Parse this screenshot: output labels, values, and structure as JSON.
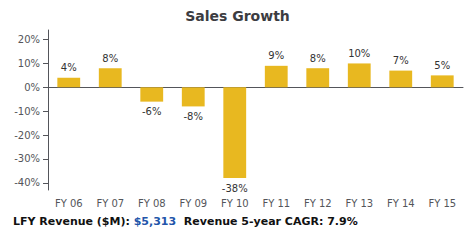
{
  "chart_data": {
    "type": "bar",
    "title": "Sales Growth",
    "categories": [
      "FY 06",
      "FY 07",
      "FY 08",
      "FY 09",
      "FY 10",
      "FY 11",
      "FY 12",
      "FY 13",
      "FY 14",
      "FY 15"
    ],
    "values": [
      4,
      8,
      -6,
      -8,
      -38,
      9,
      8,
      10,
      7,
      5
    ],
    "value_labels": [
      "4%",
      "8%",
      "-6%",
      "-8%",
      "-38%",
      "9%",
      "8%",
      "10%",
      "7%",
      "5%"
    ],
    "data_labels": true,
    "color": "#E8B820",
    "ylim": [
      -43,
      24
    ],
    "yticks": [
      {
        "value": -40,
        "label": "-40%"
      },
      {
        "value": -30,
        "label": "-30%"
      },
      {
        "value": -20,
        "label": "-20%"
      },
      {
        "value": -10,
        "label": "-10%"
      },
      {
        "value": 0,
        "label": "0%"
      },
      {
        "value": 10,
        "label": "10%"
      },
      {
        "value": 20,
        "label": "20%"
      }
    ],
    "grid": false,
    "annotations": [
      {
        "text": "LFY Revenue ($M): "
      },
      {
        "text": "$5,313",
        "color": "#2255AA"
      },
      {
        "text": "  Revenue 5-year CAGR: "
      },
      {
        "text": "7.9%"
      }
    ]
  }
}
